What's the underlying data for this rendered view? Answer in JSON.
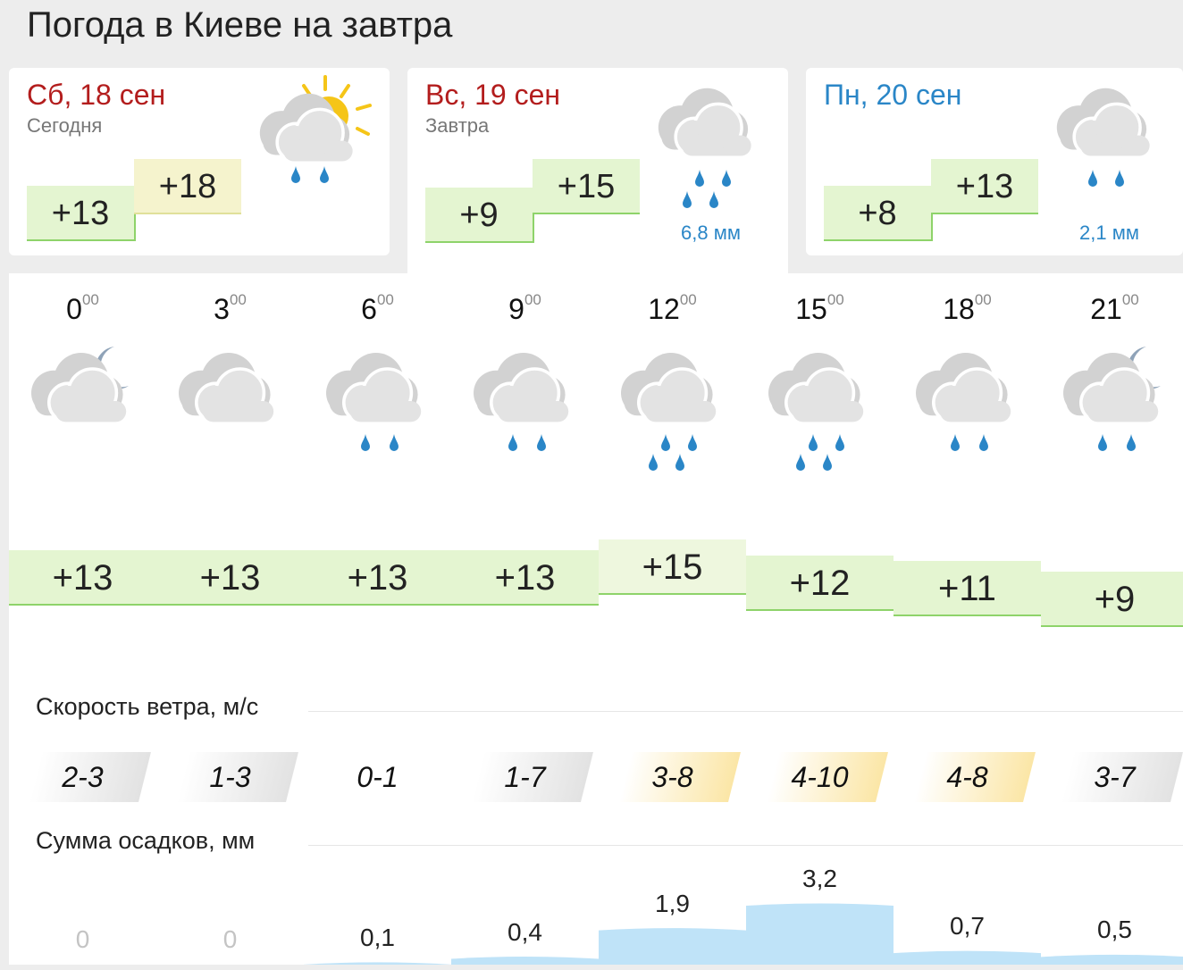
{
  "title": "Погода в Киеве на завтра",
  "days": [
    {
      "name": "Сб, 18 сен",
      "sub": "Сегодня",
      "min": "+13",
      "max": "+18",
      "precip": "",
      "name_color": "#b31d1d",
      "icon": "partly-sunny-rain-icon"
    },
    {
      "name": "Вс, 19 сен",
      "sub": "Завтра",
      "min": "+9",
      "max": "+15",
      "precip": "6,8 мм",
      "name_color": "#b31d1d",
      "icon": "cloud-heavy-rain-icon"
    },
    {
      "name": "Пн, 20 сен",
      "sub": "",
      "min": "+8",
      "max": "+13",
      "precip": "2,1 мм",
      "name_color": "#2a86c7",
      "icon": "cloud-rain-icon"
    }
  ],
  "hours": [
    {
      "h": "0",
      "m": "00",
      "temp": "+13",
      "wind": "2-3",
      "precip": "0",
      "icon": "night-cloud-icon"
    },
    {
      "h": "3",
      "m": "00",
      "temp": "+13",
      "wind": "1-3",
      "precip": "0",
      "icon": "cloud-icon"
    },
    {
      "h": "6",
      "m": "00",
      "temp": "+13",
      "wind": "0-1",
      "precip": "0,1",
      "icon": "cloud-rain-icon"
    },
    {
      "h": "9",
      "m": "00",
      "temp": "+13",
      "wind": "1-7",
      "precip": "0,4",
      "icon": "cloud-rain-icon"
    },
    {
      "h": "12",
      "m": "00",
      "temp": "+15",
      "wind": "3-8",
      "precip": "1,9",
      "icon": "cloud-heavy-rain-icon"
    },
    {
      "h": "15",
      "m": "00",
      "temp": "+12",
      "wind": "4-10",
      "precip": "3,2",
      "icon": "cloud-heavy-rain-icon"
    },
    {
      "h": "18",
      "m": "00",
      "temp": "+11",
      "wind": "4-8",
      "precip": "0,7",
      "icon": "cloud-rain-icon"
    },
    {
      "h": "21",
      "m": "00",
      "temp": "+9",
      "wind": "3-7",
      "precip": "0,5",
      "icon": "night-cloud-rain-icon"
    }
  ],
  "wind_label": "Скорость ветра, м/с",
  "precip_label": "Сумма осадков, мм",
  "colors": {
    "rain": "#2a86c7",
    "cloud": "#cfcfcf",
    "sun": "#f5c518",
    "moon": "#8fa3b8",
    "warm_wind": "#fbe6a6",
    "calm_wind": "#e2e2e2",
    "precip_fill": "#bfe3f8"
  }
}
